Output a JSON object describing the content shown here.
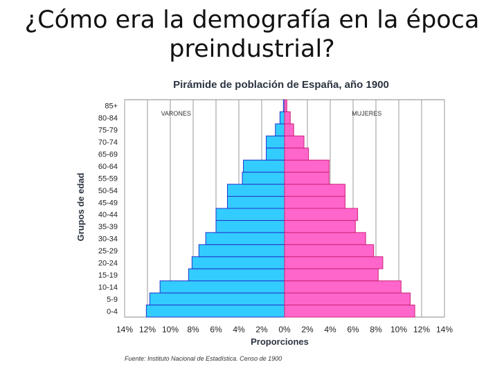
{
  "slide": {
    "title": "¿Cómo era la demografía en la época preindustrial?"
  },
  "chart_data": {
    "type": "bar",
    "orientation": "horizontal-pyramid",
    "title": "Pirámide de población de España, año 1900",
    "xlabel": "Proporciones",
    "ylabel": "Grupos de edad",
    "source": "Fuente: Instituto Nacional de Estadística. Censo de 1900",
    "xlim": [
      -14,
      14
    ],
    "x_ticks": [
      "14%",
      "12%",
      "10%",
      "8%",
      "6%",
      "4%",
      "2%",
      "0%",
      "2%",
      "4%",
      "6%",
      "8%",
      "10%",
      "12%",
      "14%"
    ],
    "grid": true,
    "categories": [
      "0-4",
      "5-9",
      "10-14",
      "15-19",
      "20-24",
      "25-29",
      "30-34",
      "35-39",
      "40-44",
      "45-49",
      "50-54",
      "55-59",
      "60-64",
      "65-69",
      "70-74",
      "75-79",
      "80-84",
      "85+"
    ],
    "series": [
      {
        "name": "VARONES",
        "color": "#33ccff",
        "values": [
          12.1,
          11.8,
          10.9,
          8.4,
          8.1,
          7.5,
          6.9,
          6.0,
          6.0,
          5.0,
          5.0,
          3.7,
          3.6,
          1.6,
          1.6,
          0.8,
          0.4,
          0.1
        ]
      },
      {
        "name": "MUJERES",
        "color": "#ff66cc",
        "values": [
          11.4,
          11.0,
          10.2,
          8.2,
          8.6,
          7.8,
          7.1,
          6.2,
          6.4,
          5.3,
          5.3,
          3.9,
          3.9,
          2.1,
          1.7,
          0.8,
          0.5,
          0.2
        ]
      }
    ]
  }
}
